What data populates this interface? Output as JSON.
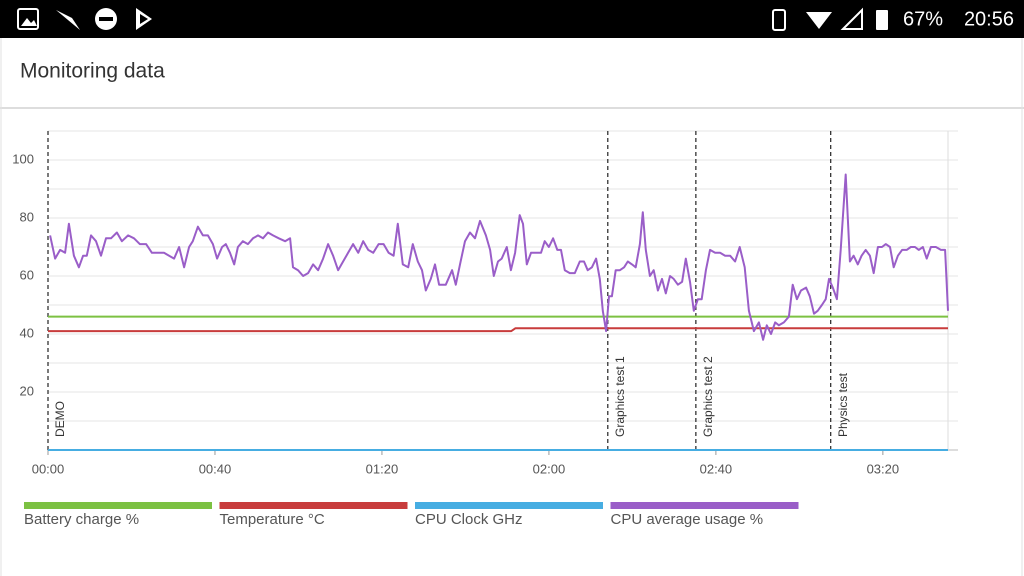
{
  "status_bar": {
    "battery": "67%",
    "time": "20:56"
  },
  "header": {
    "title": "Monitoring data"
  },
  "chart_data": {
    "type": "line",
    "xlim": [
      0,
      218
    ],
    "ylim": [
      0,
      110
    ],
    "xticks": [
      {
        "value": 0,
        "label": "00:00"
      },
      {
        "value": 40,
        "label": "00:40"
      },
      {
        "value": 80,
        "label": "01:20"
      },
      {
        "value": 120,
        "label": "02:00"
      },
      {
        "value": 160,
        "label": "02:40"
      },
      {
        "value": 200,
        "label": "03:20"
      }
    ],
    "yticks": [
      20,
      40,
      60,
      80,
      100
    ],
    "minor_yticks": [
      10,
      30,
      50,
      70,
      90,
      110
    ],
    "grid": true,
    "annotations": [
      {
        "label": "DEMO",
        "x": 0
      },
      {
        "label": "Graphics test 1",
        "x": 134.1
      },
      {
        "label": "Graphics test 2",
        "x": 155.2
      },
      {
        "label": "Physics test",
        "x": 187.5
      }
    ],
    "series": [
      {
        "name": "Battery charge %",
        "color": "#7cc142",
        "x": [
          0,
          215.6
        ],
        "values": [
          46,
          46
        ]
      },
      {
        "name": "Temperature °C",
        "color": "#c83c3c",
        "x": [
          0,
          111,
          112,
          215.6
        ],
        "values": [
          41,
          41,
          42,
          42
        ]
      },
      {
        "name": "CPU Clock GHz",
        "color": "#46ade2",
        "x": [
          0,
          215.6
        ],
        "values": [
          0,
          0
        ]
      },
      {
        "name": "CPU average usage %",
        "color": "#9a5ec8",
        "x": [
          0.5,
          1.7,
          2.9,
          4.1,
          5,
          6.2,
          7.4,
          8.4,
          9.3,
          10.3,
          11.5,
          12.7,
          13.9,
          15.1,
          16.5,
          17.7,
          19.2,
          20.6,
          22,
          23.5,
          24.9,
          26.3,
          27.8,
          29,
          30.2,
          31.4,
          32.6,
          33.8,
          34.7,
          35.9,
          37.1,
          38.3,
          39.5,
          40.5,
          41.7,
          42.6,
          43.6,
          44.6,
          45.5,
          46.7,
          47.9,
          49.1,
          50.3,
          51.5,
          52.7,
          53.9,
          55.3,
          56.8,
          58,
          58.7,
          59.9,
          61.1,
          62.3,
          63.5,
          64.7,
          65.9,
          67.1,
          68.3,
          69.5,
          70.7,
          71.9,
          73.1,
          74.3,
          75.5,
          76.7,
          77.9,
          79.2,
          80.4,
          81.6,
          82.8,
          83.8,
          85,
          86.3,
          87.4,
          88.6,
          89.6,
          90.5,
          91.7,
          92.7,
          93.7,
          95.3,
          96.8,
          97.7,
          98.7,
          99.9,
          101.1,
          102.3,
          103.5,
          104.9,
          105.9,
          106.8,
          107.8,
          108.7,
          109.9,
          110.9,
          111.9,
          113,
          113.8,
          114.7,
          115.7,
          116.9,
          118.1,
          119,
          120,
          121,
          122,
          122.9,
          123.8,
          125,
          126.2,
          127.4,
          128.4,
          129.3,
          130.3,
          131.3,
          132.2,
          132.9,
          133.7,
          134.4,
          135.1,
          136,
          137,
          138,
          138.9,
          139.9,
          140.8,
          141.8,
          142.5,
          143.2,
          144.2,
          145.1,
          146.1,
          147.1,
          148,
          149,
          149.9,
          150.9,
          151.9,
          152.8,
          153.8,
          154.7,
          155.7,
          156.6,
          157.6,
          158.6,
          159.8,
          161,
          162.2,
          163.4,
          164.6,
          165.7,
          166.9,
          167.9,
          169.1,
          170.3,
          171.3,
          172.2,
          173.2,
          174.2,
          175.1,
          176.3,
          177.5,
          178.4,
          179.4,
          180.4,
          181.6,
          182.5,
          183.5,
          184.4,
          185.4,
          186.3,
          187.1,
          188,
          189,
          189.9,
          191.1,
          192.1,
          193,
          194,
          194.9,
          195.9,
          196.9,
          197.8,
          198.8,
          199.8,
          200.7,
          201.7,
          202.6,
          203.6,
          204.6,
          205.7,
          206.7,
          207.7,
          208.6,
          209.6,
          210.5,
          211.5,
          212.7,
          213.9,
          214.9,
          215.6
        ],
        "values": [
          74,
          66,
          69,
          68,
          78,
          67,
          63,
          67,
          67,
          74,
          72,
          67,
          73,
          73,
          75,
          72,
          74,
          73,
          71,
          71,
          68,
          68,
          68,
          67,
          66,
          70,
          63,
          70,
          72,
          77,
          74,
          74,
          71,
          66,
          70,
          71,
          68,
          64,
          70,
          72,
          71,
          73,
          74,
          73,
          75,
          74,
          73,
          72,
          73,
          63,
          62,
          60,
          61,
          64,
          62,
          66,
          71,
          67,
          62,
          65,
          68,
          71,
          68,
          72,
          69,
          68,
          71,
          71,
          68,
          67,
          78,
          64,
          63,
          71,
          65,
          62,
          55,
          59,
          64,
          57,
          57,
          62,
          57,
          64,
          72,
          75,
          73,
          79,
          74,
          69,
          60,
          65,
          66,
          70,
          62,
          68,
          81,
          78,
          64,
          68,
          68,
          68,
          72,
          70,
          73,
          69,
          69,
          62,
          61,
          61,
          65,
          65,
          62,
          63,
          66,
          59,
          48,
          41,
          53,
          53,
          62,
          62,
          63,
          65,
          64,
          63,
          71,
          82,
          69,
          60,
          62,
          55,
          59,
          54,
          60,
          59,
          57,
          58,
          66,
          58,
          48,
          52,
          52,
          62,
          69,
          68,
          68,
          67,
          67,
          65,
          70,
          63,
          48,
          41,
          44,
          38,
          43,
          40,
          44,
          43,
          44,
          46,
          57,
          52,
          55,
          56,
          53,
          47,
          48,
          50,
          52,
          59,
          56,
          52,
          69,
          95,
          65,
          67,
          64,
          67,
          69,
          67,
          61,
          70,
          70,
          71,
          70,
          63,
          67,
          69,
          69,
          70,
          70,
          69,
          70,
          66,
          70,
          70,
          69,
          69,
          48
        ]
      }
    ]
  }
}
